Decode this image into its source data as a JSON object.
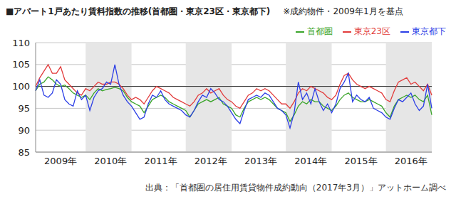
{
  "chart_data": {
    "type": "line",
    "title": "■アパート1戸あたり賃料指数の推移(首都圏・東京23区・東京都下)",
    "subtitle": "※成約物件・2009年1月を基点",
    "source": "出典：「首都圏の居住用賃貸物件成約動向（2017年3月）」アットホーム調べ",
    "categories": [
      null,
      null,
      null,
      null,
      null,
      null,
      "2009年",
      null,
      null,
      null,
      null,
      null,
      null,
      null,
      null,
      null,
      null,
      null,
      "2010年",
      null,
      null,
      null,
      null,
      null,
      null,
      null,
      null,
      null,
      null,
      null,
      "2011年",
      null,
      null,
      null,
      null,
      null,
      null,
      null,
      null,
      null,
      null,
      null,
      "2012年",
      null,
      null,
      null,
      null,
      null,
      null,
      null,
      null,
      null,
      null,
      null,
      "2013年",
      null,
      null,
      null,
      null,
      null,
      null,
      null,
      null,
      null,
      null,
      null,
      "2014年",
      null,
      null,
      null,
      null,
      null,
      null,
      null,
      null,
      null,
      null,
      null,
      "2015年",
      null,
      null,
      null,
      null,
      null,
      null,
      null,
      null,
      null,
      null,
      null,
      "2016年",
      null,
      null,
      null,
      null,
      null
    ],
    "series": [
      {
        "name": "首都圏",
        "color": "#3aa52a",
        "values": [
          99.0,
          100.5,
          101.0,
          102.2,
          101.5,
          100.5,
          100.0,
          100.3,
          99.5,
          98.5,
          98.0,
          97.5,
          98.0,
          97.0,
          98.5,
          99.5,
          99.0,
          99.3,
          99.5,
          99.8,
          99.5,
          99.0,
          97.5,
          96.5,
          96.0,
          95.5,
          94.0,
          95.5,
          97.0,
          97.5,
          98.0,
          97.5,
          96.5,
          96.0,
          95.5,
          95.0,
          94.5,
          93.0,
          94.5,
          96.0,
          96.5,
          97.0,
          96.5,
          97.0,
          97.5,
          96.0,
          95.5,
          95.0,
          93.5,
          93.0,
          95.0,
          96.5,
          97.0,
          97.5,
          97.0,
          97.5,
          97.0,
          96.0,
          95.0,
          94.5,
          94.0,
          92.0,
          93.5,
          95.5,
          96.5,
          96.0,
          97.0,
          96.5,
          96.5,
          95.5,
          95.0,
          94.5,
          95.5,
          97.0,
          98.0,
          98.5,
          97.5,
          97.0,
          96.5,
          96.5,
          97.0,
          96.5,
          96.0,
          95.5,
          94.0,
          93.0,
          95.5,
          97.0,
          97.5,
          98.0,
          97.5,
          98.0,
          97.0,
          96.5,
          98.0,
          93.5
        ]
      },
      {
        "name": "東京23区",
        "color": "#e23b3b",
        "values": [
          100.0,
          102.0,
          103.5,
          105.0,
          103.0,
          103.0,
          104.5,
          101.5,
          100.5,
          99.5,
          98.5,
          98.0,
          99.5,
          99.0,
          100.0,
          101.0,
          100.5,
          100.5,
          101.0,
          101.0,
          100.5,
          99.5,
          98.0,
          97.0,
          97.5,
          97.0,
          96.0,
          97.5,
          99.0,
          100.0,
          99.5,
          99.0,
          98.5,
          97.5,
          97.0,
          96.5,
          96.0,
          95.5,
          96.5,
          98.0,
          98.5,
          99.5,
          98.5,
          99.0,
          99.5,
          98.0,
          97.0,
          96.5,
          95.5,
          95.0,
          96.5,
          98.0,
          98.5,
          99.5,
          99.0,
          99.5,
          99.0,
          98.0,
          97.0,
          96.0,
          96.0,
          95.0,
          96.5,
          98.5,
          99.5,
          99.0,
          100.0,
          99.5,
          99.0,
          98.5,
          97.5,
          97.0,
          98.0,
          100.5,
          102.5,
          103.0,
          101.5,
          100.5,
          100.0,
          99.5,
          100.0,
          99.5,
          99.0,
          98.5,
          97.0,
          96.5,
          99.0,
          101.0,
          101.5,
          102.0,
          100.5,
          101.0,
          100.0,
          99.0,
          100.5,
          98.0
        ]
      },
      {
        "name": "東京都下",
        "color": "#2b3ee6",
        "values": [
          99.0,
          101.5,
          98.0,
          97.5,
          98.5,
          101.5,
          100.5,
          97.0,
          96.0,
          95.5,
          99.0,
          97.0,
          98.0,
          94.5,
          97.5,
          99.0,
          99.5,
          101.0,
          100.5,
          105.0,
          100.5,
          98.0,
          96.5,
          95.5,
          94.0,
          92.5,
          93.0,
          96.0,
          98.0,
          97.5,
          99.0,
          97.0,
          96.0,
          95.5,
          95.0,
          94.5,
          93.5,
          93.0,
          94.5,
          96.5,
          98.0,
          97.5,
          99.5,
          98.5,
          97.0,
          96.5,
          95.5,
          94.0,
          92.5,
          91.5,
          94.5,
          97.0,
          97.5,
          98.0,
          97.5,
          98.5,
          98.0,
          96.5,
          95.0,
          94.5,
          93.5,
          90.5,
          94.0,
          101.0,
          97.0,
          98.5,
          96.0,
          99.5,
          96.5,
          94.5,
          96.0,
          94.0,
          96.0,
          99.5,
          101.0,
          103.0,
          96.5,
          98.0,
          97.0,
          96.5,
          97.5,
          95.0,
          94.5,
          94.0,
          93.0,
          92.5,
          95.0,
          97.0,
          96.5,
          97.5,
          98.5,
          96.0,
          94.5,
          95.5,
          100.5,
          95.0
        ]
      }
    ],
    "baseline": 100,
    "ylim": [
      85,
      110
    ],
    "yticks": [
      85,
      90,
      95,
      100,
      105,
      110
    ],
    "grid": true,
    "legend": "top-right"
  }
}
